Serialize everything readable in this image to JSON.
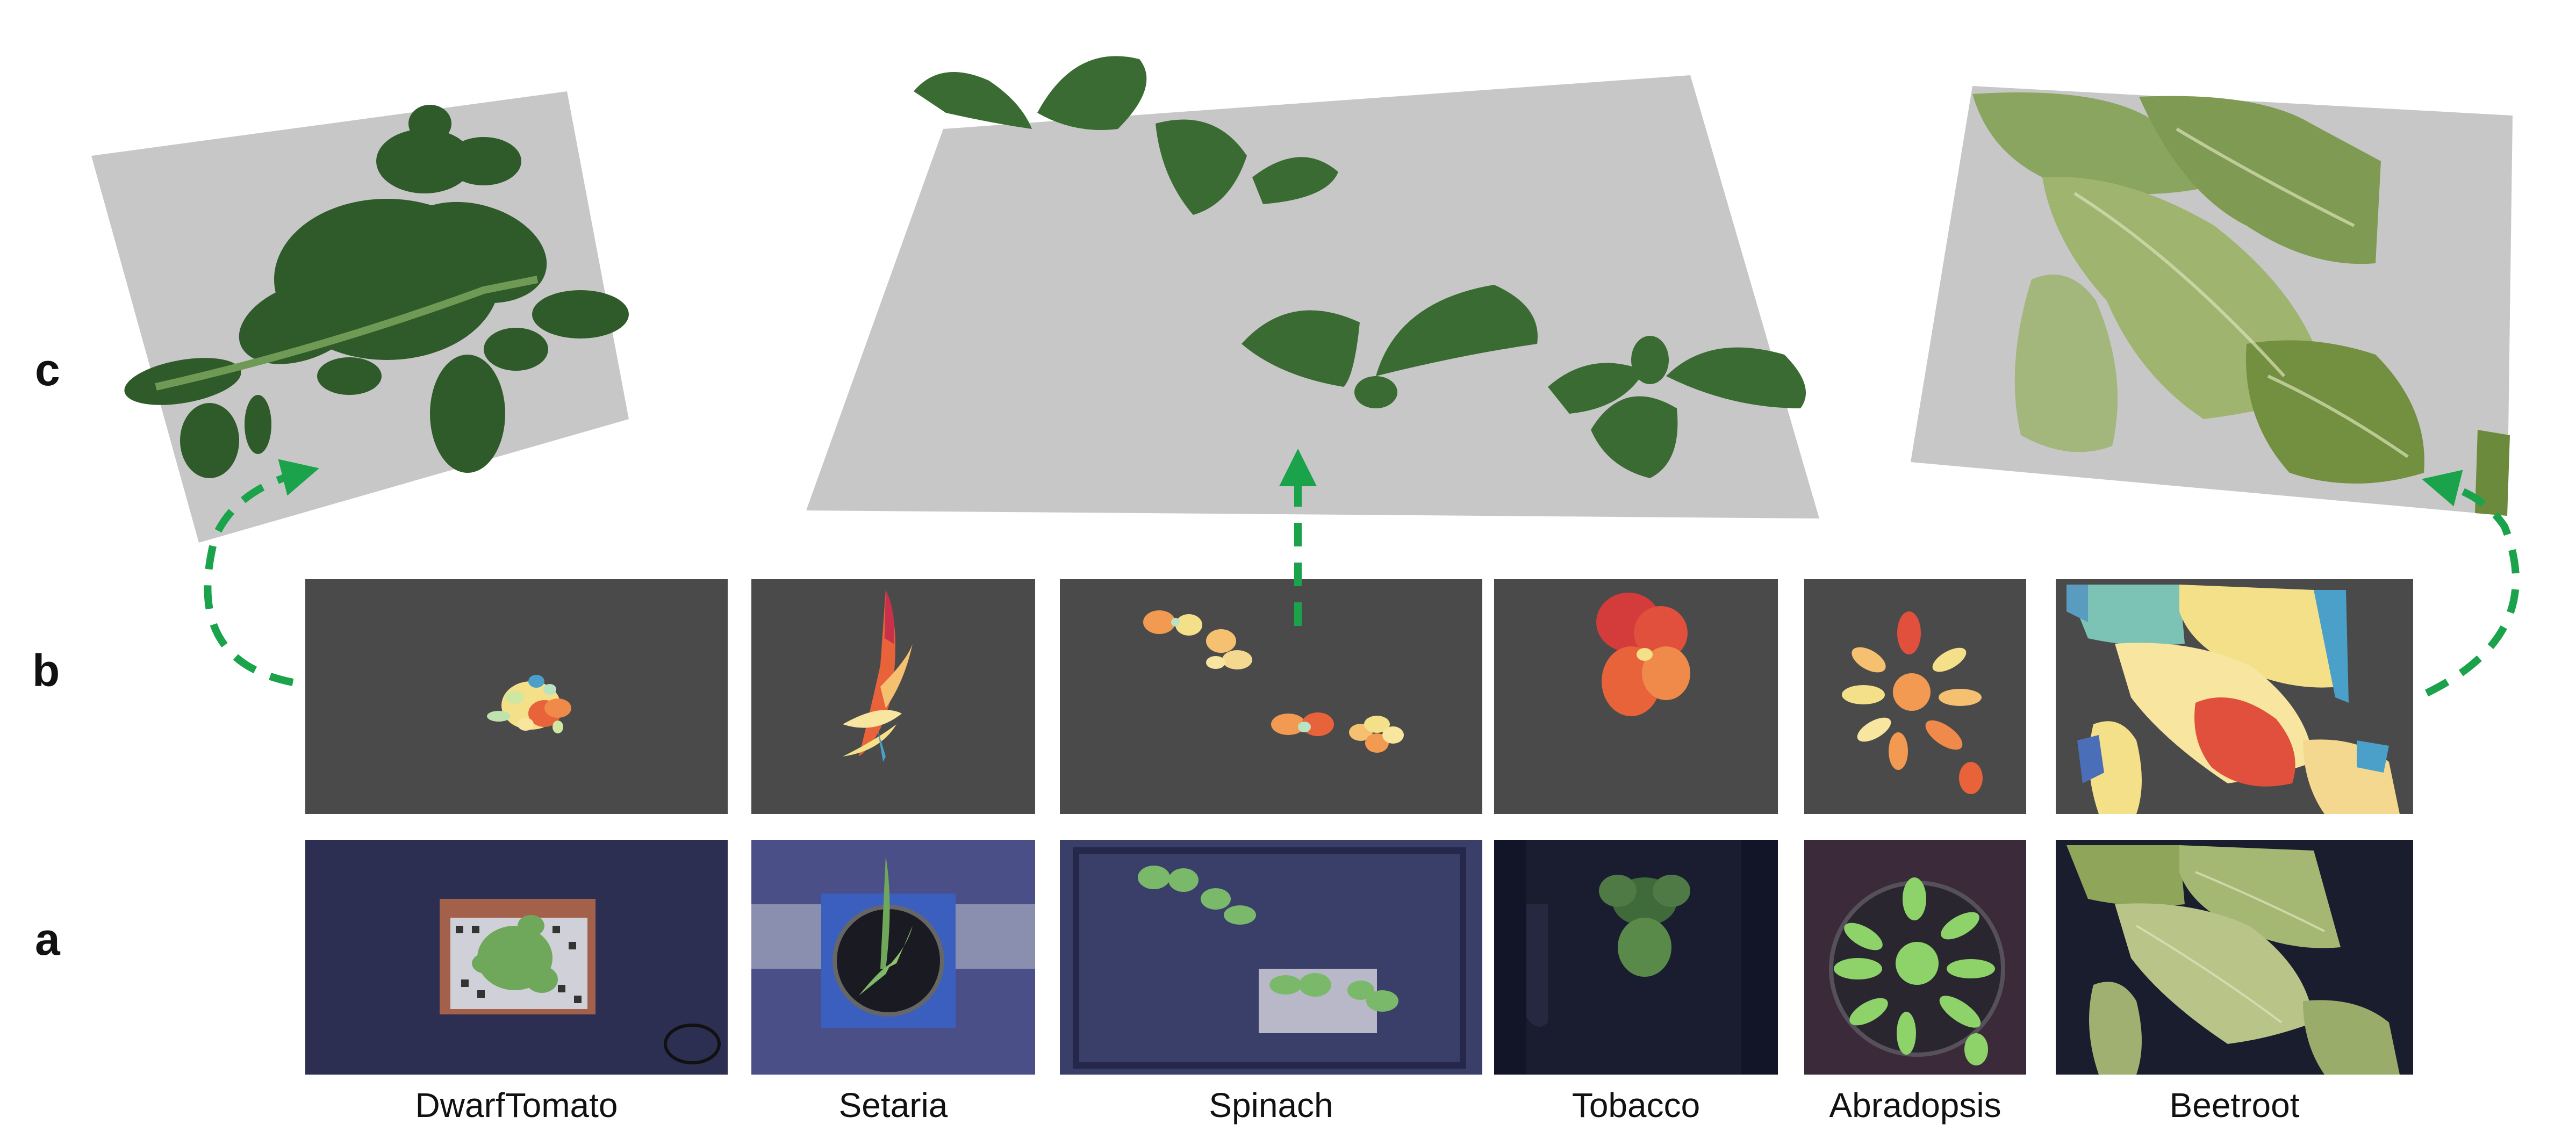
{
  "row_labels": {
    "c": "c",
    "b": "b",
    "a": "a"
  },
  "species": [
    {
      "name": "DwarfTomato"
    },
    {
      "name": "Setaria"
    },
    {
      "name": "Spinach"
    },
    {
      "name": "Tobacco"
    },
    {
      "name": "Abradopsis"
    },
    {
      "name": "Beetroot"
    }
  ],
  "colors": {
    "depth_background": "#4a4a4a",
    "rgb_background": "#2d2f52",
    "plane": "#c7c7c7",
    "arrow": "#1aa34a",
    "leaf_dark": "#2f5a2a",
    "leaf_light": "#6f9a55"
  }
}
